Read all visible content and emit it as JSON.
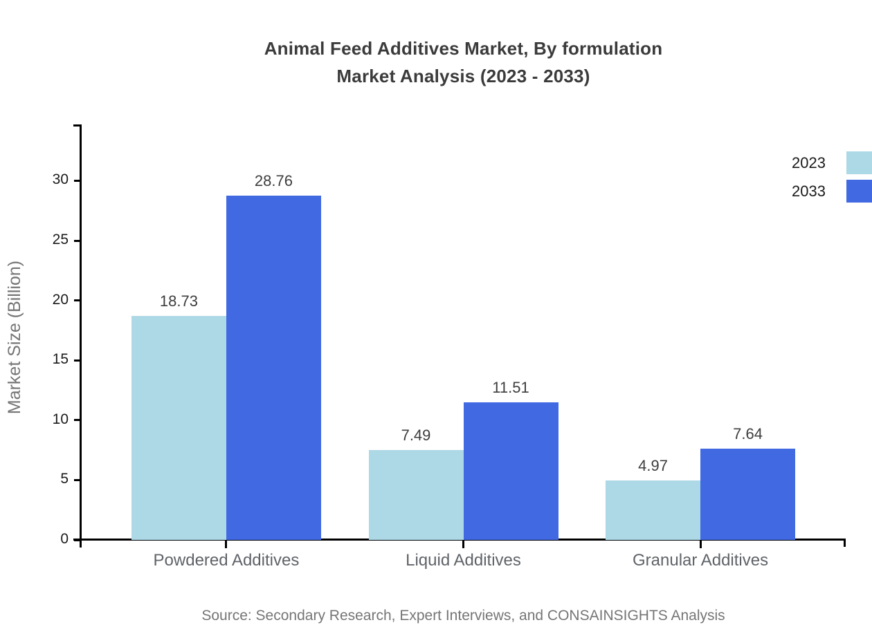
{
  "title": {
    "line1": "Animal Feed Additives Market, By formulation",
    "line2": "Market Analysis (2023 - 2033)"
  },
  "source": "Source: Secondary Research, Expert Interviews, and CONSAINSIGHTS Analysis",
  "chart_data": {
    "type": "bar",
    "title": "Animal Feed Additives Market, By formulation Market Analysis (2023 - 2033)",
    "categories": [
      "Powdered Additives",
      "Liquid Additives",
      "Granular Additives"
    ],
    "series": [
      {
        "name": "2023",
        "color": "#ADD8E6",
        "values": [
          18.73,
          7.49,
          4.97
        ]
      },
      {
        "name": "2033",
        "color": "#4169E1",
        "values": [
          28.76,
          11.51,
          7.64
        ]
      }
    ],
    "xlabel": "",
    "ylabel": "Market Size (Billion)",
    "yticks": [
      0,
      5,
      10,
      15,
      20,
      25,
      30
    ],
    "ylim": [
      0,
      34.7
    ],
    "grid": false,
    "legend_position": "top-right",
    "value_labels": true
  },
  "colors": {
    "series_2023": "#ADD8E6",
    "series_2033": "#4169E1",
    "title_text": "#3b3b3b",
    "axis": "#000000",
    "tick_text": "#1a1a1a",
    "category_text": "#5f6368",
    "muted_text": "#757575"
  }
}
